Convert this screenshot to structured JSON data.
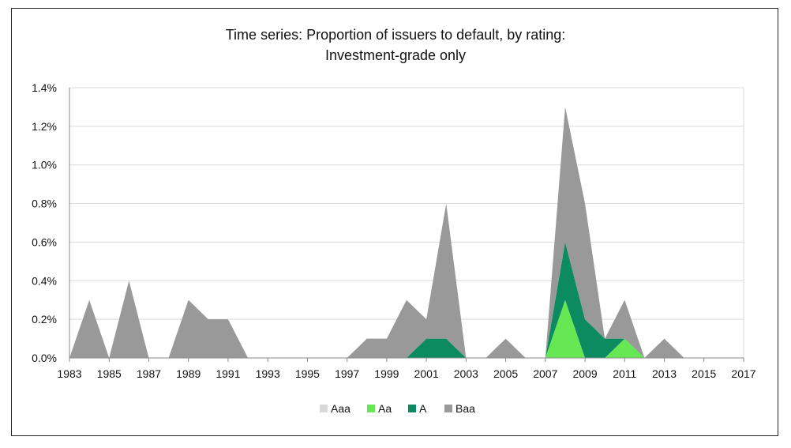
{
  "chart_data": {
    "type": "area",
    "stacked": true,
    "title": "Time series: Proportion of issuers to default, by rating:",
    "subtitle": "Investment-grade only",
    "xlabel": "",
    "ylabel": "",
    "x": [
      1983,
      1984,
      1985,
      1986,
      1987,
      1988,
      1989,
      1990,
      1991,
      1992,
      1993,
      1994,
      1995,
      1996,
      1997,
      1998,
      1999,
      2000,
      2001,
      2002,
      2003,
      2004,
      2005,
      2006,
      2007,
      2008,
      2009,
      2010,
      2011,
      2012,
      2013,
      2014,
      2015,
      2016,
      2017
    ],
    "xlim": [
      1983,
      2017
    ],
    "ylim": [
      0,
      1.4
    ],
    "x_ticks": [
      "1983",
      "1985",
      "1987",
      "1989",
      "1991",
      "1993",
      "1995",
      "1997",
      "1999",
      "2001",
      "2003",
      "2005",
      "2007",
      "2009",
      "2011",
      "2013",
      "2015",
      "2017"
    ],
    "y_ticks": [
      "0.0%",
      "0.2%",
      "0.4%",
      "0.6%",
      "0.8%",
      "1.0%",
      "1.2%",
      "1.4%"
    ],
    "grid": true,
    "legend_position": "bottom",
    "series": [
      {
        "name": "Aaa",
        "color": "#d9d9d9",
        "values": [
          0,
          0,
          0,
          0,
          0,
          0,
          0,
          0,
          0,
          0,
          0,
          0,
          0,
          0,
          0,
          0,
          0,
          0,
          0,
          0,
          0,
          0,
          0,
          0,
          0,
          0,
          0,
          0,
          0,
          0,
          0,
          0,
          0,
          0,
          0
        ]
      },
      {
        "name": "Aa",
        "color": "#66e855",
        "values": [
          0,
          0,
          0,
          0,
          0,
          0,
          0,
          0,
          0,
          0,
          0,
          0,
          0,
          0,
          0,
          0,
          0,
          0,
          0,
          0,
          0,
          0,
          0,
          0,
          0,
          0.3,
          0,
          0,
          0.1,
          0,
          0,
          0,
          0,
          0,
          0
        ]
      },
      {
        "name": "A",
        "color": "#0c8a60",
        "values": [
          0,
          0,
          0,
          0,
          0,
          0,
          0,
          0,
          0,
          0,
          0,
          0,
          0,
          0,
          0,
          0,
          0,
          0,
          0.1,
          0.1,
          0,
          0,
          0,
          0,
          0,
          0.3,
          0.2,
          0.1,
          0,
          0,
          0,
          0,
          0,
          0,
          0
        ]
      },
      {
        "name": "Baa",
        "color": "#999999",
        "values": [
          0,
          0.3,
          0,
          0.4,
          0,
          0,
          0.3,
          0.2,
          0.2,
          0,
          0,
          0,
          0,
          0,
          0,
          0.1,
          0.1,
          0.3,
          0.1,
          0.7,
          0,
          0,
          0.1,
          0,
          0,
          0.7,
          0.6,
          0,
          0.2,
          0,
          0.1,
          0,
          0,
          0,
          0
        ]
      }
    ]
  }
}
